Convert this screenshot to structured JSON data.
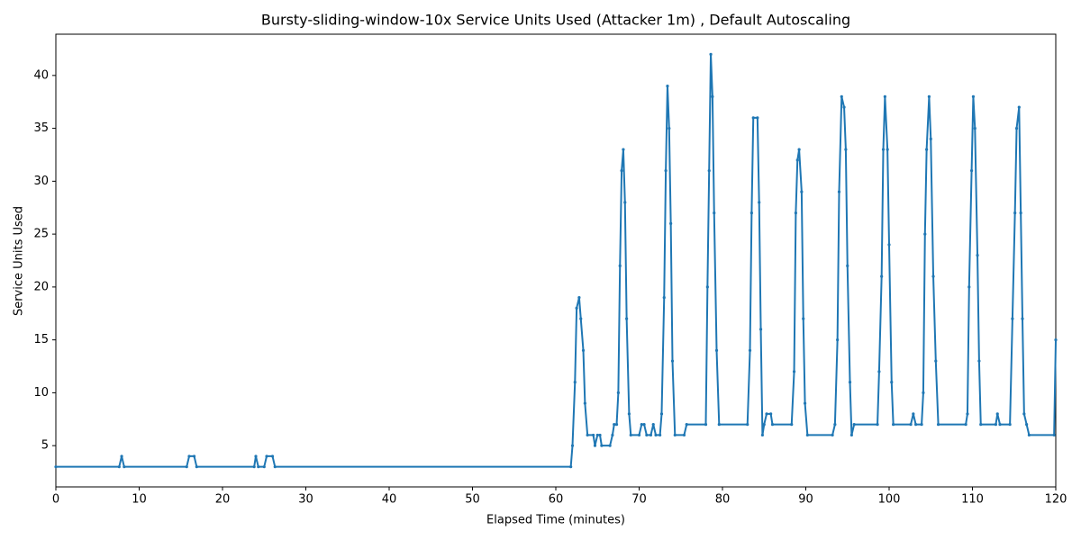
{
  "chart_data": {
    "type": "line",
    "title": "Bursty-sliding-window-10x Service Units Used (Attacker 1m) , Default Autoscaling",
    "x_label": "Elapsed Time (minutes)",
    "y_label": "Service Units Used",
    "color": "#1f77b4",
    "xlim": [
      0,
      120
    ],
    "ylim": [
      1.1,
      43.9
    ],
    "xticks": [
      0,
      10,
      20,
      30,
      40,
      50,
      60,
      70,
      80,
      90,
      100,
      110,
      120
    ],
    "yticks": [
      5,
      10,
      15,
      20,
      25,
      30,
      35,
      40
    ],
    "x": [
      0,
      7.6,
      7.9,
      8.2,
      15.7,
      16,
      16.6,
      16.9,
      23.8,
      24,
      24.3,
      25,
      25.3,
      26,
      26.3,
      61.8,
      62,
      62.3,
      62.5,
      62.8,
      63,
      63.3,
      63.5,
      63.8,
      64.5,
      64.7,
      65,
      65.3,
      65.5,
      66.5,
      66.8,
      67,
      67.3,
      67.5,
      67.7,
      67.9,
      68.1,
      68.3,
      68.5,
      68.8,
      69,
      70,
      70.3,
      70.6,
      70.9,
      71.4,
      71.7,
      72,
      72.5,
      72.7,
      73,
      73.2,
      73.4,
      73.6,
      73.8,
      74,
      74.3,
      75.4,
      75.7,
      78,
      78.2,
      78.4,
      78.6,
      78.8,
      79,
      79.3,
      79.6,
      83,
      83.3,
      83.5,
      83.7,
      84.2,
      84.4,
      84.6,
      84.8,
      85,
      85.3,
      85.8,
      86,
      88.3,
      88.6,
      88.8,
      89,
      89.2,
      89.5,
      89.7,
      89.9,
      90.2,
      93.2,
      93.5,
      93.8,
      94,
      94.3,
      94.6,
      94.8,
      95,
      95.3,
      95.5,
      95.8,
      98.6,
      98.8,
      99.1,
      99.3,
      99.5,
      99.8,
      100,
      100.3,
      100.5,
      102.6,
      102.9,
      103.2,
      103.9,
      104.1,
      104.3,
      104.5,
      104.8,
      105,
      105.3,
      105.6,
      105.9,
      109.2,
      109.4,
      109.6,
      109.9,
      110.1,
      110.3,
      110.6,
      110.8,
      111,
      112.8,
      113,
      113.3,
      114.5,
      114.8,
      115.1,
      115.3,
      115.6,
      115.8,
      116,
      116.2,
      116.5,
      116.8,
      119.8,
      120
    ],
    "values": [
      3,
      3,
      4,
      3,
      3,
      4,
      4,
      3,
      3,
      4,
      3,
      3,
      4,
      4,
      3,
      3,
      5,
      11,
      18,
      19,
      17,
      14,
      9,
      6,
      6,
      5,
      6,
      6,
      5,
      5,
      6,
      7,
      7,
      10,
      22,
      31,
      33,
      28,
      17,
      8,
      6,
      6,
      7,
      7,
      6,
      6,
      7,
      6,
      6,
      8,
      19,
      31,
      39,
      35,
      26,
      13,
      6,
      6,
      7,
      7,
      20,
      31,
      42,
      38,
      27,
      14,
      7,
      7,
      14,
      27,
      36,
      36,
      28,
      16,
      6,
      7,
      8,
      8,
      7,
      7,
      12,
      27,
      32,
      33,
      29,
      17,
      9,
      6,
      6,
      7,
      15,
      29,
      38,
      37,
      33,
      22,
      11,
      6,
      7,
      7,
      12,
      21,
      33,
      38,
      33,
      24,
      11,
      7,
      7,
      8,
      7,
      7,
      10,
      25,
      33,
      38,
      34,
      21,
      13,
      7,
      7,
      8,
      20,
      31,
      38,
      35,
      23,
      13,
      7,
      7,
      8,
      7,
      7,
      17,
      27,
      35,
      37,
      27,
      17,
      8,
      7,
      6,
      6,
      15
    ]
  }
}
